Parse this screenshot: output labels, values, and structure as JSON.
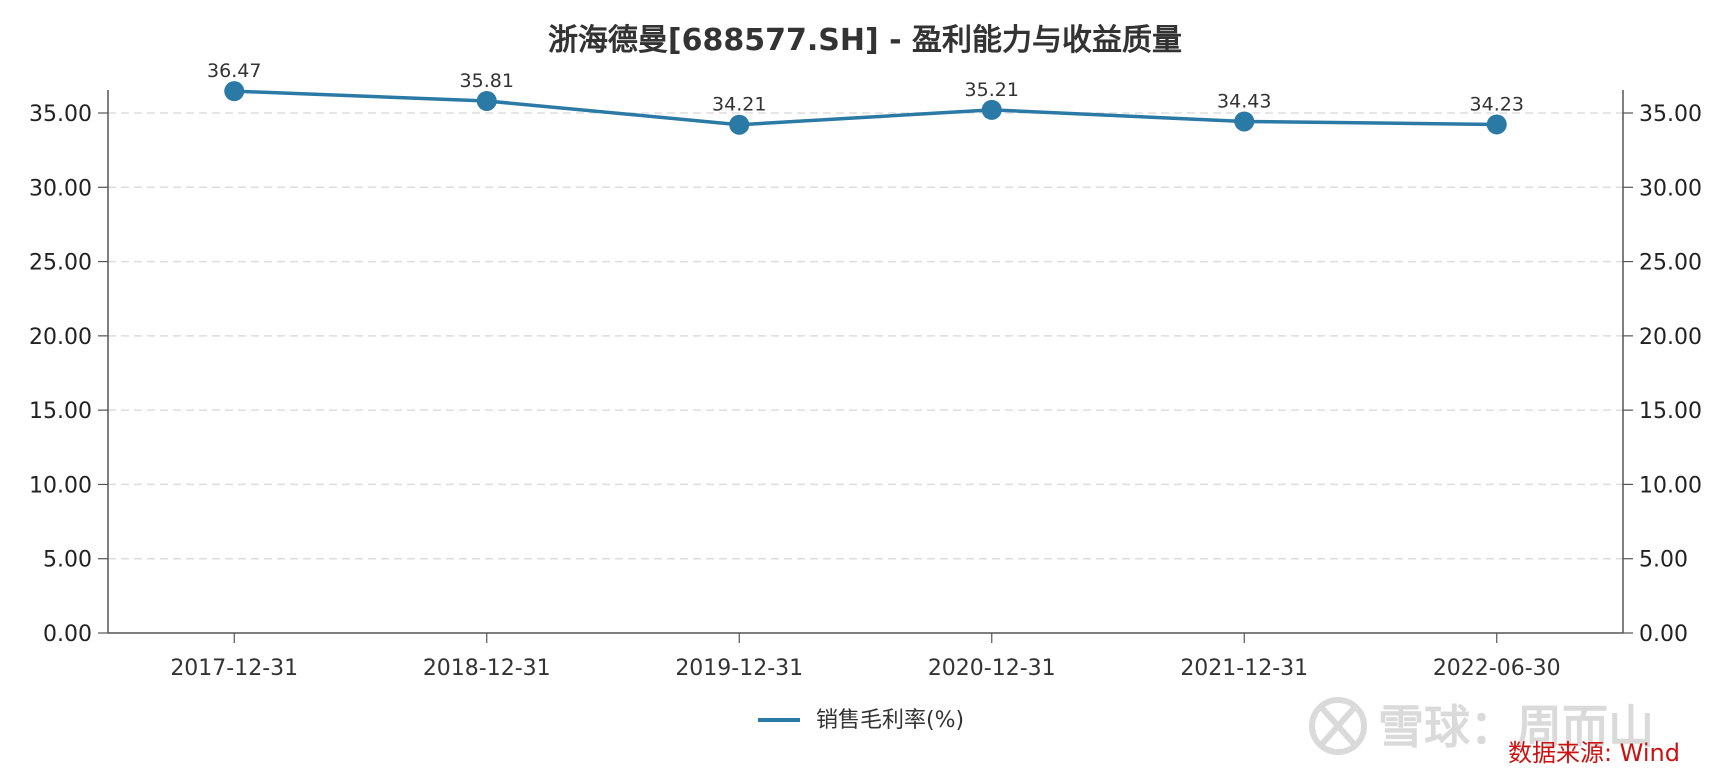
{
  "chart_data": {
    "type": "line",
    "title": "浙海德曼[688577.SH] - 盈利能力与收益质量",
    "categories": [
      "2017-12-31",
      "2018-12-31",
      "2019-12-31",
      "2020-12-31",
      "2021-12-31",
      "2022-06-30"
    ],
    "series": [
      {
        "name": "销售毛利率(%)",
        "values": [
          36.47,
          35.81,
          34.21,
          35.21,
          34.43,
          34.23
        ],
        "color": "#2a7aa5"
      }
    ],
    "data_labels": [
      "36.47",
      "35.81",
      "34.21",
      "35.21",
      "34.43",
      "34.23"
    ],
    "ylim": [
      0,
      35
    ],
    "yticks": [
      0,
      5,
      10,
      15,
      20,
      25,
      30,
      35
    ],
    "ytick_labels": [
      "0.00",
      "5.00",
      "10.00",
      "15.00",
      "20.00",
      "25.00",
      "30.00",
      "35.00"
    ],
    "dual_axis_mirrored": true,
    "grid": "horizontal-dashed",
    "legend_position": "bottom-center",
    "xlabel": "",
    "ylabel": ""
  },
  "source_note": "数据来源: Wind",
  "watermark": "雪球：周而山"
}
